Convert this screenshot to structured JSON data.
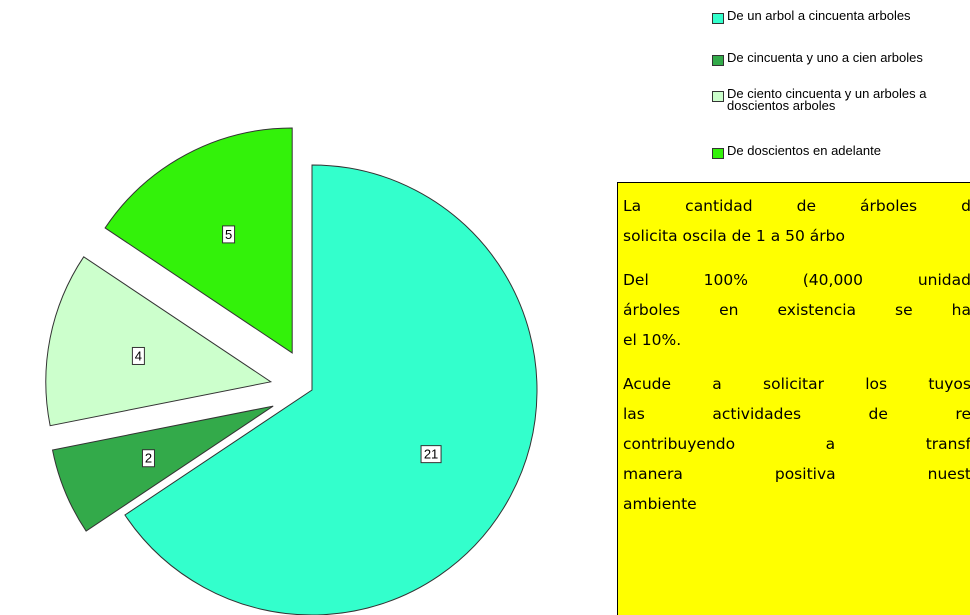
{
  "chart_data": {
    "type": "pie",
    "categories": [
      "De un arbol a cincuenta arboles",
      "De cincuenta y uno a cien arboles",
      "De ciento cincuenta y un arboles a doscientos arboles",
      "De doscientos en adelante"
    ],
    "values": [
      21,
      2,
      4,
      5
    ],
    "colors": [
      "#33ffcc",
      "#33aa4a",
      "#ccffcc",
      "#33f20a"
    ],
    "legend": "top-right"
  },
  "text_box": {
    "paragraphs": [
      [
        "La cantidad de árboles d",
        "solicita oscila de 1 a 50 árbo"
      ],
      [
        "Del 100% (40,000 unidad",
        "árboles en existencia se ha",
        "el 10%."
      ],
      [
        "Acude a solicitar los tuyos",
        "las actividades de re",
        "contribuyendo a transf",
        "manera positiva nuest",
        "ambiente"
      ]
    ]
  }
}
